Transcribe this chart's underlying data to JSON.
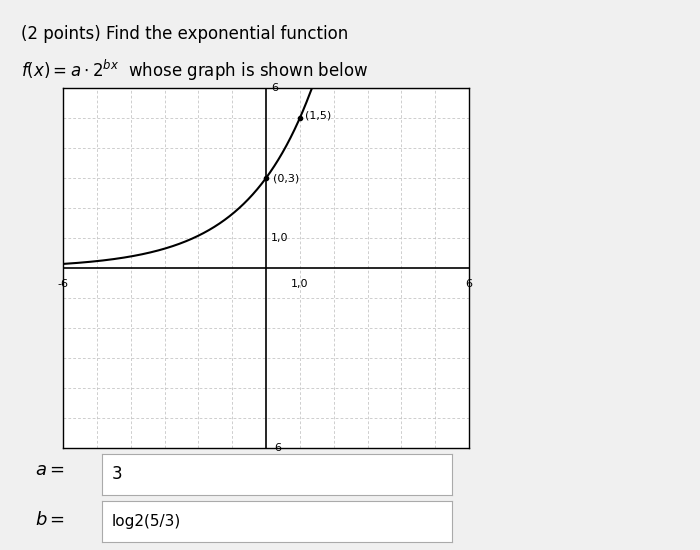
{
  "title_line1": "(2 points) Find the exponential function",
  "xlim": [
    -6,
    6
  ],
  "ylim": [
    -6,
    6
  ],
  "a_param": 3.0,
  "b_param": 0.7369655941662062,
  "points": [
    [
      0,
      3
    ],
    [
      1,
      5
    ]
  ],
  "point_labels": [
    "(0,3)",
    "(1,5)"
  ],
  "a_value": "3",
  "b_value": "log2(5/3)",
  "curve_color": "#000000",
  "grid_color": "#bbbbbb",
  "bg_color": "#f0f0f0",
  "plot_bg_color": "#ffffff",
  "axis_color": "#000000",
  "font_size_title": 12,
  "font_size_labels": 8
}
